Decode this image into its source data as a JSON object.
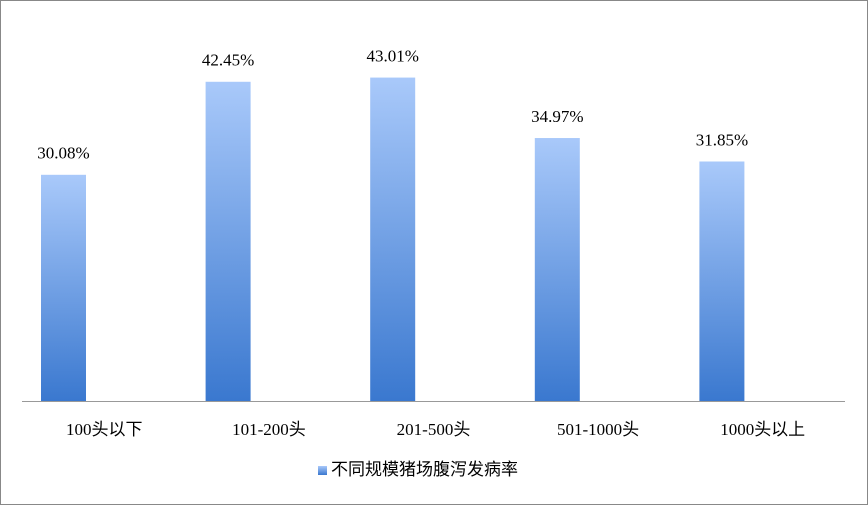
{
  "chart_data": {
    "type": "bar",
    "categories": [
      "100头以下",
      "101-200头",
      "201-500头",
      "501-1000头",
      "1000头以上"
    ],
    "series": [
      {
        "name": "不同规模猪场腹泻发病率",
        "color": "#4a86d8",
        "values": [
          30.08,
          42.45,
          43.01,
          34.97,
          31.85
        ],
        "value_labels": [
          "30.08%",
          "42.45%",
          "43.01%",
          "34.97%",
          "31.85%"
        ]
      }
    ],
    "ylim": [
      0,
      50
    ],
    "legend": "bottom"
  }
}
